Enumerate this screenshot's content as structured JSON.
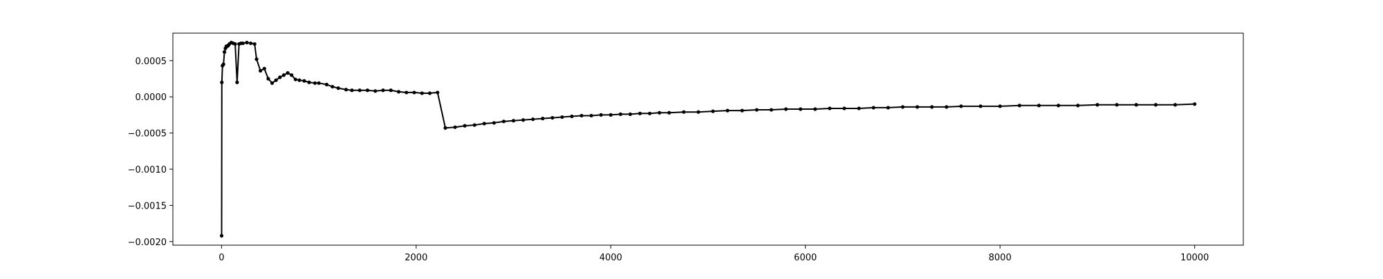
{
  "chart_data": {
    "type": "line",
    "title": "",
    "xlabel": "",
    "ylabel": "",
    "xlim": [
      -500,
      10500
    ],
    "ylim": [
      -0.00205,
      0.00088
    ],
    "grid": false,
    "legend": "none",
    "line_color": "#000000",
    "marker": "dot",
    "x_ticks": [
      0,
      2000,
      4000,
      6000,
      8000,
      10000
    ],
    "x_tick_labels": [
      "0",
      "2000",
      "4000",
      "6000",
      "8000",
      "10000"
    ],
    "y_ticks": [
      0.0005,
      0.0,
      -0.0005,
      -0.001,
      -0.0015,
      -0.002
    ],
    "y_tick_labels": [
      "0.0005",
      "0.0000",
      "−0.0005",
      "−0.0010",
      "−0.0015",
      "−0.0020"
    ],
    "series": [
      {
        "x": [
          1,
          3,
          10,
          20,
          30,
          40,
          50,
          60,
          70,
          80,
          100,
          120,
          140,
          160,
          180,
          200,
          220,
          260,
          300,
          340,
          360,
          400,
          440,
          480,
          520,
          560,
          600,
          640,
          680,
          720,
          760,
          800,
          850,
          900,
          960,
          1000,
          1080,
          1140,
          1200,
          1280,
          1340,
          1420,
          1500,
          1580,
          1660,
          1740,
          1820,
          1900,
          1980,
          2060,
          2140,
          2220,
          2300,
          2400,
          2500,
          2600,
          2700,
          2800,
          2900,
          3000,
          3100,
          3200,
          3300,
          3400,
          3500,
          3600,
          3700,
          3800,
          3900,
          4000,
          4100,
          4200,
          4300,
          4400,
          4500,
          4600,
          4750,
          4900,
          5050,
          5200,
          5350,
          5500,
          5650,
          5800,
          5950,
          6100,
          6250,
          6400,
          6550,
          6700,
          6850,
          7000,
          7150,
          7300,
          7450,
          7600,
          7800,
          8000,
          8200,
          8400,
          8600,
          8800,
          9000,
          9200,
          9400,
          9600,
          9800,
          10000
        ],
        "y": [
          -0.00192,
          0.0002,
          0.00043,
          0.00045,
          0.00062,
          0.00067,
          0.0007,
          0.0007,
          0.00071,
          0.00073,
          0.00075,
          0.00074,
          0.00073,
          0.0002,
          0.00073,
          0.00074,
          0.00074,
          0.00075,
          0.00074,
          0.00073,
          0.00052,
          0.00036,
          0.00039,
          0.00025,
          0.00019,
          0.00023,
          0.00027,
          0.0003,
          0.00033,
          0.0003,
          0.00024,
          0.00023,
          0.00022,
          0.0002,
          0.00019,
          0.00019,
          0.00017,
          0.00014,
          0.00012,
          0.0001,
          9e-05,
          9e-05,
          9e-05,
          8e-05,
          9e-05,
          9e-05,
          7e-05,
          6e-05,
          6e-05,
          5e-05,
          5e-05,
          6e-05,
          -0.00043,
          -0.00042,
          -0.0004,
          -0.00039,
          -0.00037,
          -0.00036,
          -0.00034,
          -0.00033,
          -0.00032,
          -0.00031,
          -0.0003,
          -0.00029,
          -0.00028,
          -0.00027,
          -0.00026,
          -0.00026,
          -0.00025,
          -0.00025,
          -0.00024,
          -0.00024,
          -0.00023,
          -0.00023,
          -0.00022,
          -0.00022,
          -0.00021,
          -0.00021,
          -0.0002,
          -0.00019,
          -0.00019,
          -0.00018,
          -0.00018,
          -0.00017,
          -0.00017,
          -0.00017,
          -0.00016,
          -0.00016,
          -0.00016,
          -0.00015,
          -0.00015,
          -0.00014,
          -0.00014,
          -0.00014,
          -0.00014,
          -0.00013,
          -0.00013,
          -0.00013,
          -0.00012,
          -0.00012,
          -0.00012,
          -0.00012,
          -0.00011,
          -0.00011,
          -0.00011,
          -0.00011,
          -0.00011,
          -0.0001
        ]
      }
    ]
  }
}
